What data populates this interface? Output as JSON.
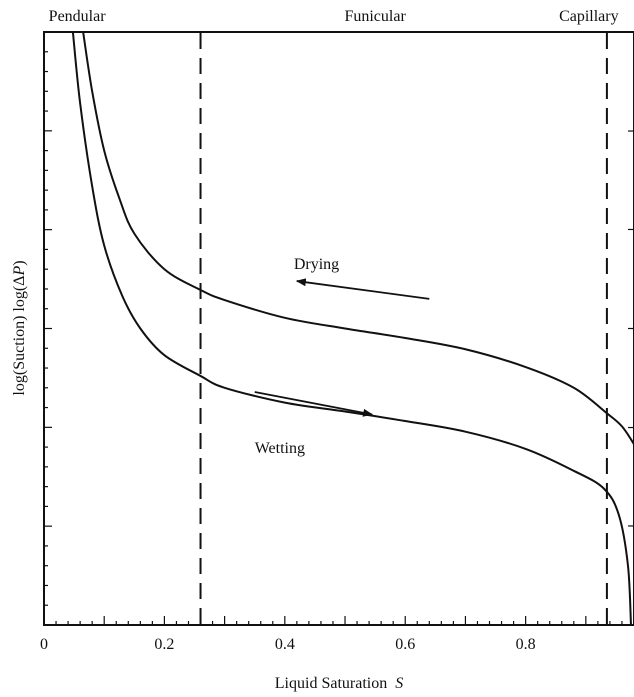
{
  "chart_data": {
    "type": "line",
    "xlabel": "Liquid Saturation",
    "xlabel_var": "S",
    "ylabel_prefix": "log(Suction) log(Δ",
    "ylabel_var": "P",
    "ylabel_suffix": ")",
    "xlim": [
      0,
      0.98
    ],
    "ylim": [
      0,
      1
    ],
    "x_ticks": [
      0,
      0.2,
      0.4,
      0.6,
      0.8
    ],
    "x_tick_labels": [
      "0",
      "0.2",
      "0.4",
      "0.6",
      "0.8"
    ],
    "y_labeled": false,
    "regions": [
      {
        "label": "Pendular",
        "x_label_pos": 0.055
      },
      {
        "label": "Funicular",
        "x_label_pos": 0.55
      },
      {
        "label": "Capillary",
        "x_label_pos": 0.905
      }
    ],
    "boundaries": [
      0.26,
      0.935
    ],
    "series": [
      {
        "name": "Drying",
        "x": [
          0.065,
          0.08,
          0.1,
          0.125,
          0.15,
          0.2,
          0.26,
          0.3,
          0.4,
          0.5,
          0.6,
          0.7,
          0.8,
          0.88,
          0.935,
          0.96,
          0.98
        ],
        "y": [
          1.0,
          0.9,
          0.8,
          0.72,
          0.66,
          0.6,
          0.565,
          0.548,
          0.518,
          0.5,
          0.484,
          0.465,
          0.435,
          0.4,
          0.357,
          0.335,
          0.305
        ]
      },
      {
        "name": "Wetting",
        "x": [
          0.048,
          0.06,
          0.08,
          0.1,
          0.13,
          0.16,
          0.2,
          0.26,
          0.3,
          0.4,
          0.5,
          0.6,
          0.7,
          0.8,
          0.88,
          0.93,
          0.955,
          0.97,
          0.975
        ],
        "y": [
          1.0,
          0.88,
          0.74,
          0.64,
          0.555,
          0.5,
          0.455,
          0.42,
          0.4,
          0.375,
          0.36,
          0.344,
          0.326,
          0.297,
          0.26,
          0.23,
          0.185,
          0.1,
          0.0
        ]
      }
    ],
    "annotations": [
      {
        "text": "Drying",
        "x": 0.415,
        "y": 0.6
      },
      {
        "text": "Wetting",
        "x": 0.35,
        "y": 0.29
      }
    ],
    "arrows": [
      {
        "from": [
          0.64,
          0.55
        ],
        "to": [
          0.42,
          0.58
        ]
      },
      {
        "from": [
          0.35,
          0.393
        ],
        "to": [
          0.545,
          0.355
        ]
      }
    ]
  }
}
